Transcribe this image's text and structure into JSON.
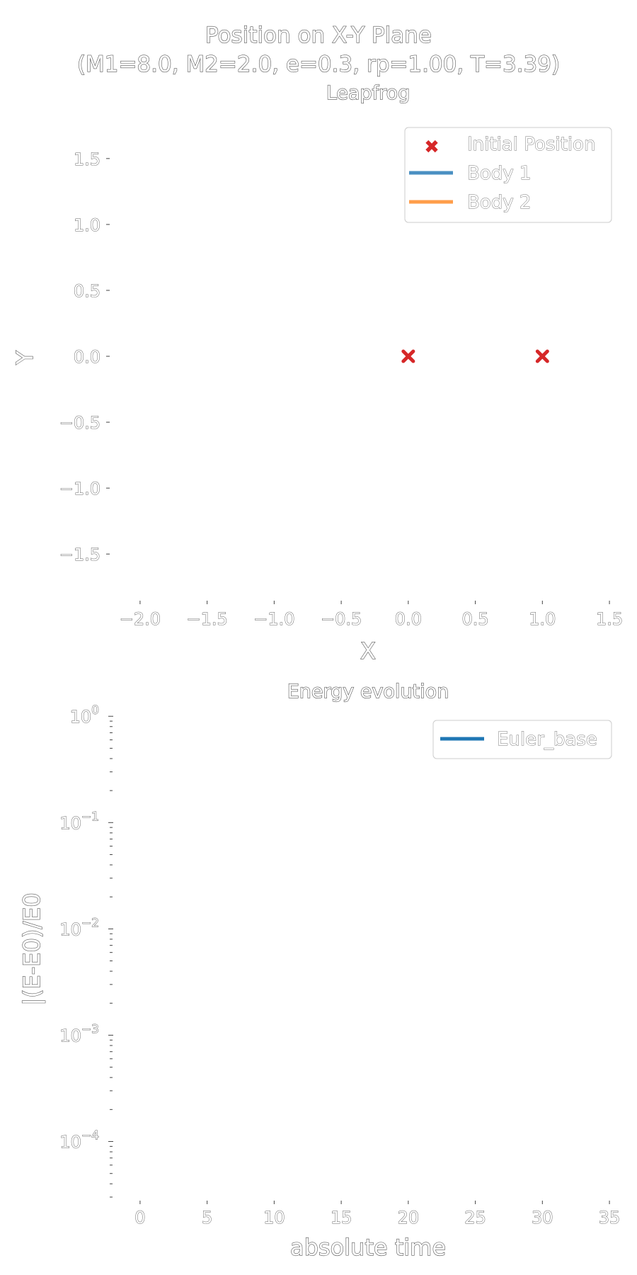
{
  "figure": {
    "title_line1": "Position on X-Y Plane",
    "title_line2": "(M1=8.0, M2=2.0, e=0.3, rp=1.00, T=3.39)"
  },
  "chart_data": [
    {
      "type": "scatter",
      "title": "Leapfrog",
      "xlabel": "X",
      "ylabel": "Y",
      "xlim": [
        -2.2,
        1.6
      ],
      "ylim": [
        -1.8,
        1.8
      ],
      "xticks": [
        -2.0,
        -1.5,
        -1.0,
        -0.5,
        0.0,
        0.5,
        1.0,
        1.5
      ],
      "xtick_labels": [
        "−2.0",
        "−1.5",
        "−1.0",
        "−0.5",
        "0.0",
        "0.5",
        "1.0",
        "1.5"
      ],
      "yticks": [
        1.5,
        1.0,
        0.5,
        0.0,
        -0.5,
        -1.0,
        -1.5
      ],
      "ytick_labels": [
        "1.5",
        "1.0",
        "0.5",
        "0.0",
        "−0.5",
        "−1.0",
        "−1.5"
      ],
      "grid": false,
      "legend_position": "top-right",
      "series": [
        {
          "name": "Initial Position",
          "kind": "marker-x",
          "color": "#d62728",
          "points": [
            [
              0.0,
              0.0
            ],
            [
              1.0,
              0.0
            ]
          ]
        },
        {
          "name": "Body 1",
          "kind": "line",
          "color": "#4a90c2",
          "points": []
        },
        {
          "name": "Body 2",
          "kind": "line",
          "color": "#ff9e4a",
          "points": []
        }
      ]
    },
    {
      "type": "line",
      "title": "Energy evolution",
      "xlabel": "absolute time",
      "ylabel": "|(E-E0)/E0",
      "xlim": [
        -2,
        36
      ],
      "yscale": "log",
      "ylim": [
        3e-05,
        1.1
      ],
      "xticks": [
        0,
        5,
        10,
        15,
        20,
        25,
        30,
        35
      ],
      "xtick_labels": [
        "0",
        "5",
        "10",
        "15",
        "20",
        "25",
        "30",
        "35"
      ],
      "yticks": [
        1,
        0.1,
        0.01,
        0.001,
        0.0001
      ],
      "ytick_exponents": [
        "0",
        "−1",
        "−2",
        "−3",
        "−4"
      ],
      "ytick_base": "10",
      "grid": false,
      "legend_position": "top-right",
      "series": [
        {
          "name": "Euler_base",
          "kind": "line",
          "color": "#1f77b4",
          "points": []
        }
      ]
    }
  ]
}
